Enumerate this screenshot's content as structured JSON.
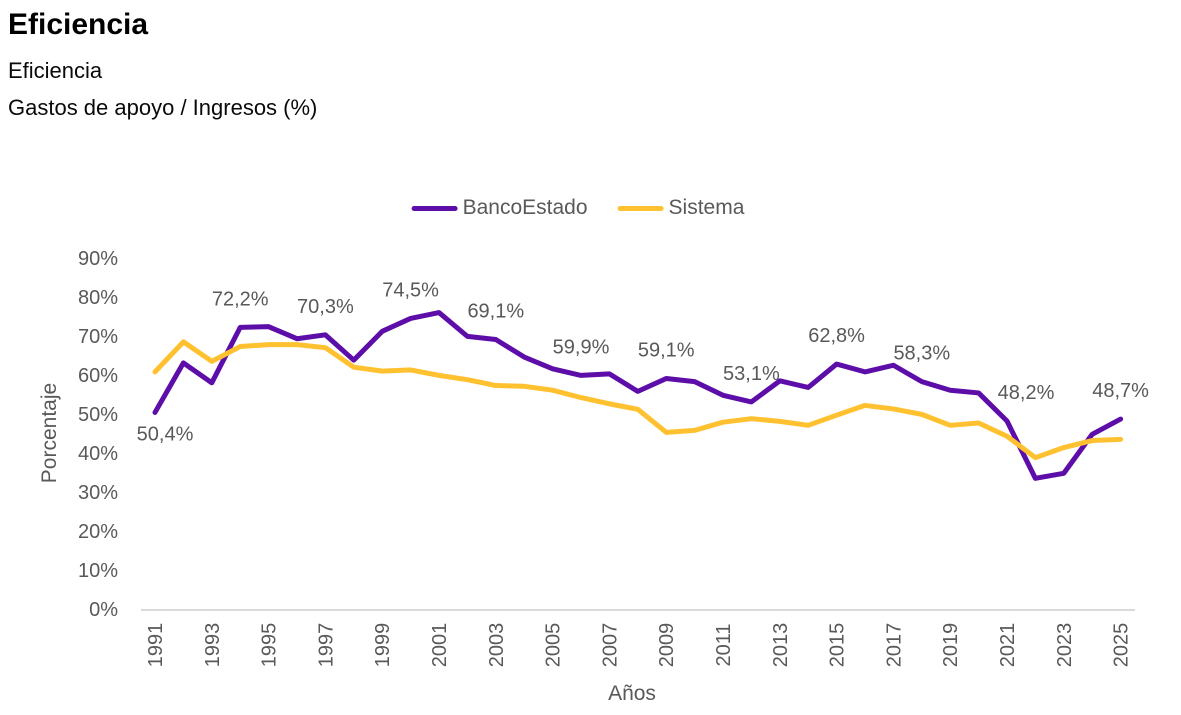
{
  "chart_data": {
    "type": "line",
    "title": "Eficiencia",
    "subtitle": "Eficiencia",
    "metric_label": "Gastos de apoyo / Ingresos (%)",
    "xlabel": "Años",
    "ylabel": "Porcentaje",
    "x_range": [
      1991,
      2025
    ],
    "ylim": [
      0,
      90
    ],
    "grid": false,
    "legend_position": "top-center",
    "axis_line_color": "#D9D9D9",
    "text_color": "#595959",
    "x_ticks": [
      "1991",
      "1993",
      "1995",
      "1997",
      "1999",
      "2001",
      "2003",
      "2005",
      "2007",
      "2009",
      "2011",
      "2013",
      "2015",
      "2017",
      "2019",
      "2021",
      "2023",
      "2025"
    ],
    "y_ticks": [
      {
        "value": 0,
        "label": "0%"
      },
      {
        "value": 10,
        "label": "10%"
      },
      {
        "value": 20,
        "label": "20%"
      },
      {
        "value": 30,
        "label": "30%"
      },
      {
        "value": 40,
        "label": "40%"
      },
      {
        "value": 50,
        "label": "50%"
      },
      {
        "value": 60,
        "label": "60%"
      },
      {
        "value": 70,
        "label": "70%"
      },
      {
        "value": 80,
        "label": "80%"
      },
      {
        "value": 90,
        "label": "90%"
      }
    ],
    "series": [
      {
        "id": "bancoestado",
        "name": "BancoEstado",
        "color": "#5D0DA8",
        "values": [
          50.4,
          63.1,
          58.0,
          72.2,
          72.4,
          69.3,
          70.3,
          63.8,
          71.2,
          74.5,
          76.0,
          69.9,
          69.1,
          64.6,
          61.6,
          59.9,
          60.3,
          55.8,
          59.1,
          58.3,
          54.8,
          53.1,
          58.5,
          56.8,
          62.8,
          60.8,
          62.5,
          58.3,
          56.1,
          55.4,
          48.2,
          33.5,
          34.8,
          44.8,
          48.7
        ]
      },
      {
        "id": "sistema",
        "name": "Sistema",
        "color": "#FFC12F",
        "values": [
          60.8,
          68.5,
          63.5,
          67.3,
          67.8,
          67.8,
          67.0,
          62.0,
          61.0,
          61.3,
          59.9,
          58.8,
          57.3,
          57.1,
          56.1,
          54.2,
          52.6,
          51.2,
          45.3,
          45.8,
          47.9,
          48.8,
          48.1,
          47.1,
          49.7,
          52.2,
          51.3,
          49.9,
          47.1,
          47.7,
          44.3,
          38.8,
          41.4,
          43.2,
          43.5
        ]
      }
    ],
    "point_labels": [
      {
        "year": 1991,
        "text": "50,4%",
        "placement": "below",
        "dx": 10
      },
      {
        "year": 1994,
        "text": "72,2%",
        "placement": "above"
      },
      {
        "year": 1997,
        "text": "70,3%",
        "placement": "above"
      },
      {
        "year": 2000,
        "text": "74,5%",
        "placement": "above"
      },
      {
        "year": 2003,
        "text": "69,1%",
        "placement": "above"
      },
      {
        "year": 2006,
        "text": "59,9%",
        "placement": "above"
      },
      {
        "year": 2009,
        "text": "59,1%",
        "placement": "above"
      },
      {
        "year": 2012,
        "text": "53,1%",
        "placement": "above"
      },
      {
        "year": 2015,
        "text": "62,8%",
        "placement": "above"
      },
      {
        "year": 2018,
        "text": "58,3%",
        "placement": "above"
      },
      {
        "year": 2021,
        "text": "48,2%",
        "placement": "above",
        "dx": 19
      },
      {
        "year": 2025,
        "text": "48,7%",
        "placement": "above"
      }
    ]
  }
}
